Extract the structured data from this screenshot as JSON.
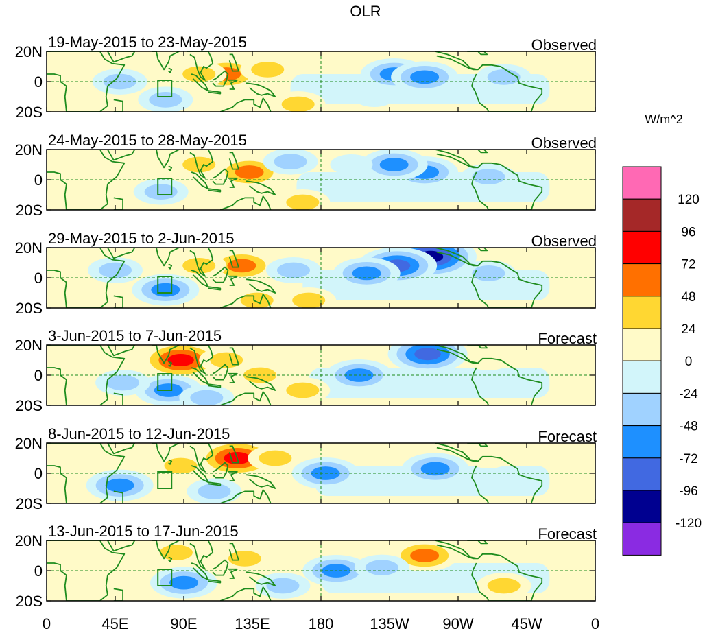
{
  "chart_data": {
    "type": "heatmap",
    "title": "OLR",
    "variable": "OLR anomaly",
    "units_label": "W/m^2",
    "x_ticks": [
      "0",
      "45E",
      "90E",
      "135E",
      "180",
      "135W",
      "90W",
      "45W",
      "0"
    ],
    "y_ticks": [
      "20N",
      "0",
      "20S"
    ],
    "xlim_deg_east": [
      0,
      360
    ],
    "ylim_deg": [
      -20,
      20
    ],
    "colorbar": {
      "levels": [
        -120,
        -96,
        -72,
        -48,
        -24,
        0,
        24,
        48,
        72,
        96,
        120
      ],
      "level_labels": [
        "120",
        "96",
        "72",
        "48",
        "24",
        "0",
        "-24",
        "-48",
        "-72",
        "-96",
        "-120"
      ],
      "colors_low_to_high": [
        "#8a2be2",
        "#000090",
        "#4169e1",
        "#1e90ff",
        "#a0d2ff",
        "#d2f5fa",
        "#fffac8",
        "#ffd732",
        "#ff7000",
        "#ff0000",
        "#a52828",
        "#ff69b4"
      ]
    },
    "panels": [
      {
        "period": "19-May-2015 to 23-May-2015",
        "kind": "Observed",
        "features": [
          {
            "lon": 118,
            "lat": 5,
            "value": 60
          },
          {
            "lon": 100,
            "lat": 5,
            "value": 35
          },
          {
            "lon": 145,
            "lat": 8,
            "value": 30
          },
          {
            "lon": 165,
            "lat": -15,
            "value": 30
          },
          {
            "lon": 228,
            "lat": 5,
            "value": -70
          },
          {
            "lon": 248,
            "lat": 3,
            "value": -50
          },
          {
            "lon": 78,
            "lat": -12,
            "value": -45
          },
          {
            "lon": 48,
            "lat": 0,
            "value": -30
          },
          {
            "lon": 300,
            "lat": 3,
            "value": -30
          },
          {
            "lon": 215,
            "lat": -10,
            "value": -20
          }
        ]
      },
      {
        "period": "24-May-2015 to 28-May-2015",
        "kind": "Observed",
        "features": [
          {
            "lon": 133,
            "lat": 5,
            "value": 60
          },
          {
            "lon": 100,
            "lat": 10,
            "value": 30
          },
          {
            "lon": 168,
            "lat": -15,
            "value": 30
          },
          {
            "lon": 248,
            "lat": 5,
            "value": -70
          },
          {
            "lon": 228,
            "lat": 10,
            "value": -50
          },
          {
            "lon": 290,
            "lat": 2,
            "value": -40
          },
          {
            "lon": 75,
            "lat": -8,
            "value": -30
          },
          {
            "lon": 160,
            "lat": 12,
            "value": -25
          },
          {
            "lon": 200,
            "lat": 10,
            "value": -20
          }
        ]
      },
      {
        "period": "29-May-2015 to 2-Jun-2015",
        "kind": "Observed",
        "features": [
          {
            "lon": 252,
            "lat": 14,
            "value": -110
          },
          {
            "lon": 230,
            "lat": 8,
            "value": -75
          },
          {
            "lon": 210,
            "lat": 3,
            "value": -50
          },
          {
            "lon": 128,
            "lat": 8,
            "value": 60
          },
          {
            "lon": 100,
            "lat": 8,
            "value": 40
          },
          {
            "lon": 172,
            "lat": -15,
            "value": 35
          },
          {
            "lon": 138,
            "lat": -15,
            "value": 30
          },
          {
            "lon": 78,
            "lat": -8,
            "value": -50
          },
          {
            "lon": 45,
            "lat": 5,
            "value": -30
          },
          {
            "lon": 162,
            "lat": 5,
            "value": -30
          },
          {
            "lon": 290,
            "lat": 3,
            "value": -30
          }
        ]
      },
      {
        "period": "3-Jun-2015 to 7-Jun-2015",
        "kind": "Forecast",
        "features": [
          {
            "lon": 88,
            "lat": 10,
            "value": 75
          },
          {
            "lon": 118,
            "lat": 10,
            "value": 40
          },
          {
            "lon": 140,
            "lat": 0,
            "value": 35
          },
          {
            "lon": 168,
            "lat": -10,
            "value": 35
          },
          {
            "lon": 250,
            "lat": 14,
            "value": -80
          },
          {
            "lon": 205,
            "lat": 0,
            "value": -50
          },
          {
            "lon": 80,
            "lat": -10,
            "value": -50
          },
          {
            "lon": 105,
            "lat": -15,
            "value": -45
          },
          {
            "lon": 50,
            "lat": -5,
            "value": -30
          },
          {
            "lon": 290,
            "lat": 10,
            "value": 20
          }
        ]
      },
      {
        "period": "8-Jun-2015 to 12-Jun-2015",
        "kind": "Forecast",
        "features": [
          {
            "lon": 125,
            "lat": 10,
            "value": 75
          },
          {
            "lon": 88,
            "lat": 5,
            "value": 40
          },
          {
            "lon": 150,
            "lat": 10,
            "value": 35
          },
          {
            "lon": 183,
            "lat": 0,
            "value": -60
          },
          {
            "lon": 255,
            "lat": 3,
            "value": -65
          },
          {
            "lon": 48,
            "lat": -8,
            "value": -60
          },
          {
            "lon": 110,
            "lat": -12,
            "value": -40
          },
          {
            "lon": 290,
            "lat": 10,
            "value": 20
          }
        ]
      },
      {
        "period": "13-Jun-2015 to 17-Jun-2015",
        "kind": "Forecast",
        "features": [
          {
            "lon": 85,
            "lat": 12,
            "value": 40
          },
          {
            "lon": 130,
            "lat": 8,
            "value": 40
          },
          {
            "lon": 248,
            "lat": 10,
            "value": 70
          },
          {
            "lon": 190,
            "lat": 0,
            "value": -60
          },
          {
            "lon": 220,
            "lat": 2,
            "value": -45
          },
          {
            "lon": 90,
            "lat": -8,
            "value": -50
          },
          {
            "lon": 155,
            "lat": -10,
            "value": -30
          },
          {
            "lon": 300,
            "lat": -10,
            "value": 25
          }
        ]
      }
    ]
  }
}
